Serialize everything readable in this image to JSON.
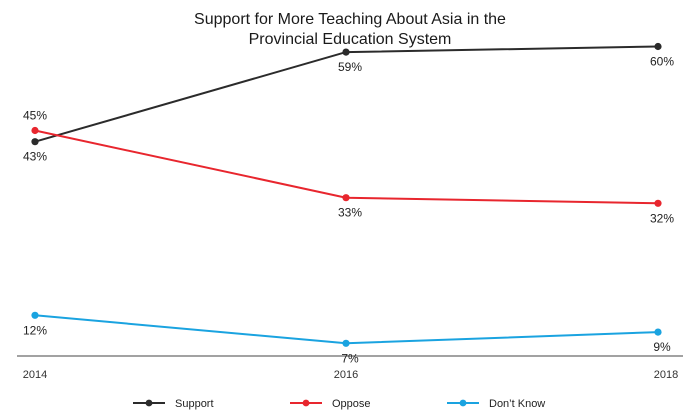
{
  "chart_data": {
    "type": "line",
    "title_lines": [
      "Support for More Teaching About Asia in the",
      "Provincial Education System"
    ],
    "categories": [
      "2014",
      "2016",
      "2018"
    ],
    "ylim": [
      0,
      70
    ],
    "grid": false,
    "legend_position": "bottom",
    "value_suffix": "%",
    "series": [
      {
        "name": "Support",
        "values": [
          43,
          59,
          60
        ],
        "color": "#2b2b2b",
        "label_pos": [
          "below",
          "below",
          "below"
        ]
      },
      {
        "name": "Oppose",
        "values": [
          45,
          33,
          32
        ],
        "color": "#e8262e",
        "label_pos": [
          "above",
          "below",
          "below"
        ]
      },
      {
        "name": "Don’t Know",
        "values": [
          12,
          7,
          9
        ],
        "color": "#1aa3e0",
        "label_pos": [
          "below",
          "below",
          "below"
        ]
      }
    ]
  }
}
